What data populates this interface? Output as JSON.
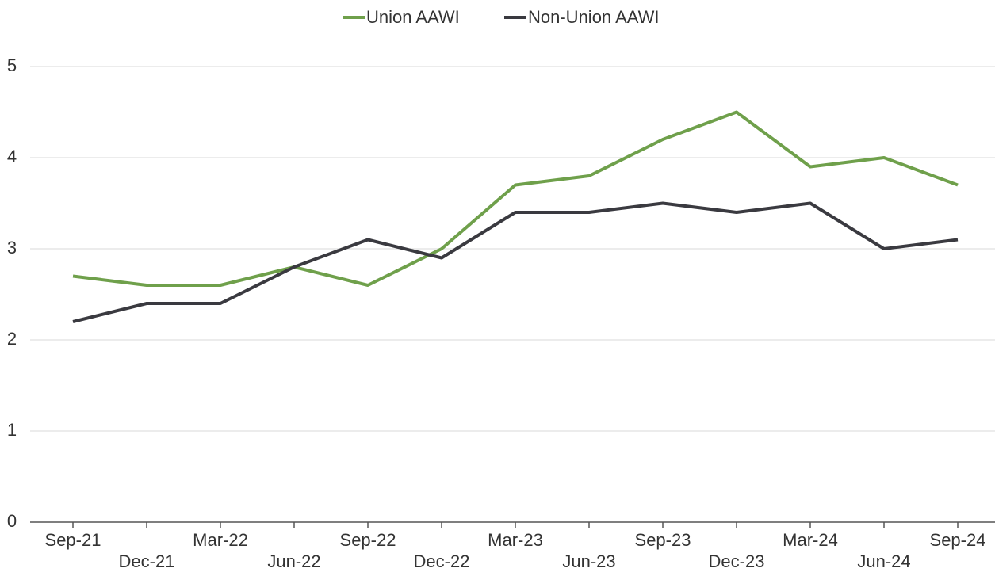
{
  "chart_data": {
    "type": "line",
    "categories": [
      "Sep-21",
      "Dec-21",
      "Mar-22",
      "Jun-22",
      "Sep-22",
      "Dec-22",
      "Mar-23",
      "Jun-23",
      "Sep-23",
      "Dec-23",
      "Mar-24",
      "Jun-24",
      "Sep-24"
    ],
    "series": [
      {
        "name": "Union AAWI",
        "color": "#6fa04b",
        "values": [
          2.7,
          2.6,
          2.6,
          2.8,
          2.6,
          3.0,
          3.7,
          3.8,
          4.2,
          4.5,
          3.9,
          4.0,
          3.7
        ]
      },
      {
        "name": "Non-Union AAWI",
        "color": "#3a3a40",
        "values": [
          2.2,
          2.4,
          2.4,
          2.8,
          3.1,
          2.9,
          3.4,
          3.4,
          3.5,
          3.4,
          3.5,
          3.0,
          3.1
        ]
      }
    ],
    "ylim": [
      0,
      5
    ],
    "yticks": [
      0,
      1,
      2,
      3,
      4,
      5
    ],
    "grid": true,
    "legend": "top"
  }
}
